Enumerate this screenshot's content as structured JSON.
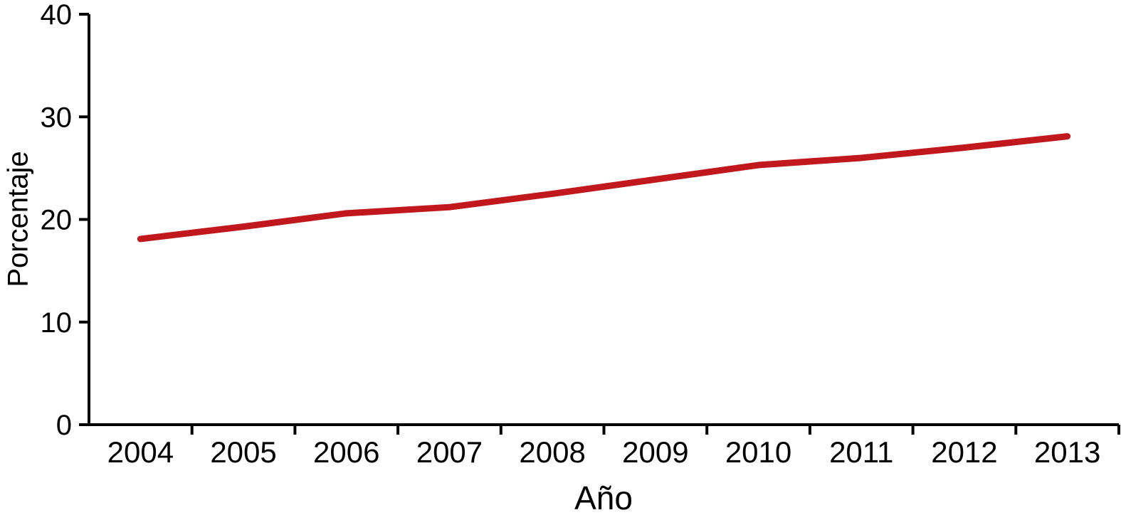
{
  "chart_data": {
    "type": "line",
    "title": "",
    "xlabel": "Año",
    "ylabel": "Porcentaje",
    "categories": [
      "2004",
      "2005",
      "2006",
      "2007",
      "2008",
      "2009",
      "2010",
      "2011",
      "2012",
      "2013"
    ],
    "series": [
      {
        "name": "porcentaje",
        "color": "#c0181c",
        "values": [
          18.1,
          19.3,
          20.6,
          21.2,
          22.5,
          23.9,
          25.3,
          26.0,
          27.0,
          28.1
        ]
      }
    ],
    "ylim": [
      0,
      40
    ],
    "yticks": [
      0,
      10,
      20,
      30,
      40
    ],
    "grid": false,
    "legend_position": "none",
    "axis_color": "#000000",
    "background_color": "#ffffff"
  }
}
